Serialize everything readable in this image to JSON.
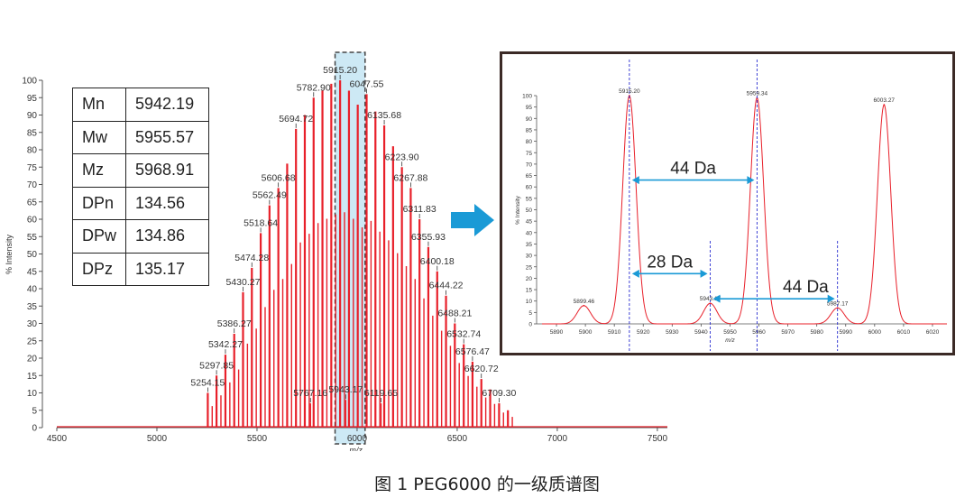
{
  "chart_data": [
    {
      "type": "bar",
      "title": "",
      "xlabel": "m/z",
      "ylabel": "% Intensity",
      "xlim": [
        4500,
        7550
      ],
      "ylim": [
        0,
        100
      ],
      "xticks": [
        4500,
        5000,
        5500,
        6000,
        6500,
        7000,
        7500
      ],
      "yticks": [
        0,
        5,
        10,
        15,
        20,
        25,
        30,
        35,
        40,
        45,
        50,
        55,
        60,
        65,
        70,
        75,
        80,
        85,
        90,
        95,
        100
      ],
      "main_peaks": [
        {
          "x": 5254.15,
          "y": 10
        },
        {
          "x": 5297.85,
          "y": 15
        },
        {
          "x": 5342.27,
          "y": 21
        },
        {
          "x": 5386.27,
          "y": 27
        },
        {
          "x": 5430.27,
          "y": 39
        },
        {
          "x": 5474.28,
          "y": 46
        },
        {
          "x": 5518.64,
          "y": 56
        },
        {
          "x": 5562.49,
          "y": 64
        },
        {
          "x": 5606.68,
          "y": 69
        },
        {
          "x": 5650.7,
          "y": 76
        },
        {
          "x": 5694.72,
          "y": 86
        },
        {
          "x": 5738.78,
          "y": 90
        },
        {
          "x": 5782.9,
          "y": 95
        },
        {
          "x": 5826.95,
          "y": 97
        },
        {
          "x": 5871.1,
          "y": 99
        },
        {
          "x": 5915.2,
          "y": 100
        },
        {
          "x": 5959.34,
          "y": 97
        },
        {
          "x": 6003.27,
          "y": 93
        },
        {
          "x": 6047.55,
          "y": 96
        },
        {
          "x": 6091.6,
          "y": 91
        },
        {
          "x": 6135.68,
          "y": 87
        },
        {
          "x": 6179.8,
          "y": 81
        },
        {
          "x": 6223.9,
          "y": 75
        },
        {
          "x": 6267.88,
          "y": 69
        },
        {
          "x": 6311.83,
          "y": 60
        },
        {
          "x": 6355.93,
          "y": 52
        },
        {
          "x": 6400.18,
          "y": 45
        },
        {
          "x": 6444.22,
          "y": 38
        },
        {
          "x": 6488.21,
          "y": 30
        },
        {
          "x": 6532.74,
          "y": 24
        },
        {
          "x": 6576.47,
          "y": 19
        },
        {
          "x": 6620.72,
          "y": 14
        },
        {
          "x": 6664.9,
          "y": 11
        },
        {
          "x": 6709.3,
          "y": 7
        },
        {
          "x": 6753.4,
          "y": 5
        }
      ],
      "minor_peaks": [
        {
          "x": 5767.16,
          "y": 7
        },
        {
          "x": 5943.17,
          "y": 8
        },
        {
          "x": 6119.65,
          "y": 7
        }
      ],
      "labels": [
        {
          "x": 5254.15,
          "y": 10,
          "text": "5254.15"
        },
        {
          "x": 5297.85,
          "y": 15,
          "text": "5297.85"
        },
        {
          "x": 5342.27,
          "y": 21,
          "text": "5342.27"
        },
        {
          "x": 5386.27,
          "y": 27,
          "text": "5386.27"
        },
        {
          "x": 5430.27,
          "y": 39,
          "text": "5430.27"
        },
        {
          "x": 5474.28,
          "y": 46,
          "text": "5474.28"
        },
        {
          "x": 5518.64,
          "y": 56,
          "text": "5518.64"
        },
        {
          "x": 5562.49,
          "y": 64,
          "text": "5562.49"
        },
        {
          "x": 5606.68,
          "y": 69,
          "text": "5606.68"
        },
        {
          "x": 5694.72,
          "y": 86,
          "text": "5694.72"
        },
        {
          "x": 5782.9,
          "y": 95,
          "text": "5782.90"
        },
        {
          "x": 5915.2,
          "y": 100,
          "text": "5915.20"
        },
        {
          "x": 6047.55,
          "y": 96,
          "text": "6047.55"
        },
        {
          "x": 6135.68,
          "y": 87,
          "text": "6135.68"
        },
        {
          "x": 6223.9,
          "y": 75,
          "text": "6223.90"
        },
        {
          "x": 6267.88,
          "y": 69,
          "text": "6267.88"
        },
        {
          "x": 6311.83,
          "y": 60,
          "text": "6311.83"
        },
        {
          "x": 6355.93,
          "y": 52,
          "text": "6355.93"
        },
        {
          "x": 6400.18,
          "y": 45,
          "text": "6400.18"
        },
        {
          "x": 6444.22,
          "y": 38,
          "text": "6444.22"
        },
        {
          "x": 6488.21,
          "y": 30,
          "text": "6488.21"
        },
        {
          "x": 6532.74,
          "y": 24,
          "text": "6532.74"
        },
        {
          "x": 6576.47,
          "y": 19,
          "text": "6576.47"
        },
        {
          "x": 6620.72,
          "y": 14,
          "text": "6620.72"
        },
        {
          "x": 6709.3,
          "y": 7,
          "text": "6709.30"
        },
        {
          "x": 5767.16,
          "y": 7,
          "text": "5767.16"
        },
        {
          "x": 5943.17,
          "y": 8,
          "text": "5943.17"
        },
        {
          "x": 6119.65,
          "y": 7,
          "text": "6119.65"
        }
      ],
      "highlight_range": [
        5890,
        6040
      ],
      "line_color": "#e8202a"
    },
    {
      "type": "line",
      "title": "",
      "xlabel": "m/z",
      "ylabel": "% Intensity",
      "xlim": [
        5885,
        6025
      ],
      "ylim": [
        0,
        100
      ],
      "xticks": [
        5890,
        5900,
        5910,
        5920,
        5930,
        5940,
        5950,
        5960,
        5970,
        5980,
        5990,
        6000,
        6010,
        6020
      ],
      "yticks": [
        0,
        5,
        10,
        15,
        20,
        25,
        30,
        35,
        40,
        45,
        50,
        55,
        60,
        65,
        70,
        75,
        80,
        85,
        90,
        95,
        100
      ],
      "peaks": [
        {
          "x": 5899.46,
          "y": 8
        },
        {
          "x": 5915.2,
          "y": 100
        },
        {
          "x": 5943.17,
          "y": 9
        },
        {
          "x": 5959.34,
          "y": 99
        },
        {
          "x": 5987.17,
          "y": 7
        },
        {
          "x": 6003.27,
          "y": 96
        }
      ],
      "labels": [
        {
          "x": 5899.46,
          "y": 8,
          "text": "5899.46"
        },
        {
          "x": 5915.2,
          "y": 100,
          "text": "5915.20"
        },
        {
          "x": 5943.17,
          "y": 9,
          "text": "5943.17"
        },
        {
          "x": 5959.34,
          "y": 99,
          "text": "5959.34"
        },
        {
          "x": 5987.17,
          "y": 7,
          "text": "5987.17"
        },
        {
          "x": 6003.27,
          "y": 96,
          "text": "6003.27"
        }
      ],
      "markers": [
        5915.2,
        5959.34,
        5943.17,
        5987.17
      ],
      "annotations": [
        {
          "text": "44 Da",
          "from": 5915.2,
          "to": 5959.34,
          "y": 63
        },
        {
          "text": "28 Da",
          "from": 5915.2,
          "to": 5943.17,
          "y": 22
        },
        {
          "text": "44 Da",
          "from": 5943.17,
          "to": 5987.17,
          "y": 11
        }
      ],
      "line_color": "#e8202a"
    }
  ],
  "stats_table": [
    {
      "key": "Mn",
      "value": "5942.19"
    },
    {
      "key": "Mw",
      "value": "5955.57"
    },
    {
      "key": "Mz",
      "value": "5968.91"
    },
    {
      "key": "DPn",
      "value": "134.56"
    },
    {
      "key": "DPw",
      "value": "134.86"
    },
    {
      "key": "DPz",
      "value": "135.17"
    }
  ],
  "caption": "图 1 PEG6000 的一级质谱图",
  "colors": {
    "peak": "#e8202a",
    "arrow": "#1a9ad6",
    "highlight": "#cde9f5",
    "marker": "#2b2fd0"
  }
}
